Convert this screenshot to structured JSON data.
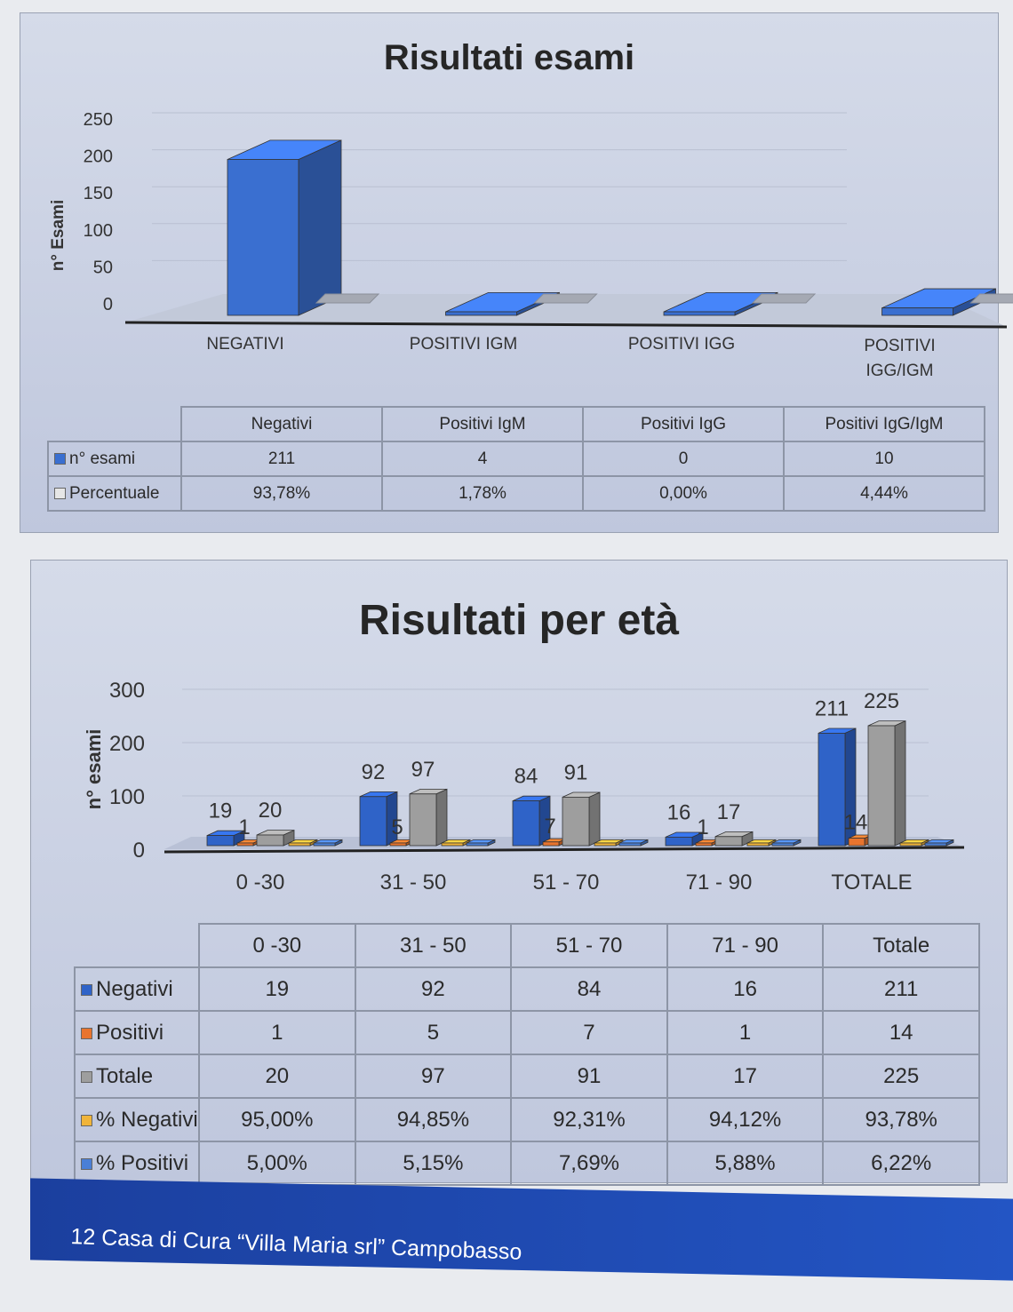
{
  "chart_data": [
    {
      "type": "bar",
      "title": "Risultati esami",
      "ylabel": "n° Esami",
      "xlabel": "",
      "ylim": [
        0,
        250
      ],
      "yticks": [
        0,
        50,
        100,
        150,
        200,
        250
      ],
      "categories": [
        "NEGATIVI",
        "POSITIVI IGM",
        "POSITIVI IGG",
        "POSITIVI IGG/IGM"
      ],
      "series": [
        {
          "name": "n° esami",
          "color": "#3a6fd0",
          "values": [
            211,
            4,
            0,
            10
          ]
        },
        {
          "name": "Percentuale",
          "color": "#d9d9d9",
          "values": [
            0.9378,
            0.0178,
            0.0,
            0.0444
          ]
        }
      ],
      "table": {
        "headers": [
          "Negativi",
          "Positivi IgM",
          "Positivi IgG",
          "Positivi IgG/IgM"
        ],
        "rows": [
          {
            "label": "n° esami",
            "color": "#3a6fd0",
            "cells": [
              "211",
              "4",
              "0",
              "10"
            ]
          },
          {
            "label": "Percentuale",
            "color": "#e6e6e6",
            "cells": [
              "93,78%",
              "1,78%",
              "0,00%",
              "4,44%"
            ]
          }
        ]
      },
      "grid": true
    },
    {
      "type": "bar",
      "title": "Risultati per età",
      "ylabel": "n° esami",
      "xlabel": "",
      "ylim": [
        0,
        300
      ],
      "yticks": [
        0,
        100,
        200,
        300
      ],
      "categories": [
        "0 -30",
        "31 - 50",
        "51 - 70",
        "71 - 90",
        "TOTALE"
      ],
      "series": [
        {
          "name": "Negativi",
          "color": "#2f63c8",
          "values": [
            19,
            92,
            84,
            16,
            211
          ]
        },
        {
          "name": "Positivi",
          "color": "#e8742e",
          "values": [
            1,
            5,
            7,
            1,
            14
          ]
        },
        {
          "name": "Totale",
          "color": "#9e9e9e",
          "values": [
            20,
            97,
            91,
            17,
            225
          ]
        },
        {
          "name": "% Negativi",
          "color": "#f0b43a",
          "values": [
            0.95,
            0.9485,
            0.9231,
            0.9412,
            0.9378
          ]
        },
        {
          "name": "% Positivi",
          "color": "#4a7fd6",
          "values": [
            0.05,
            0.0515,
            0.0769,
            0.0588,
            0.0622
          ]
        }
      ],
      "data_labels": [
        [
          "19",
          "1",
          "20"
        ],
        [
          "92",
          "5",
          "97"
        ],
        [
          "84",
          "7",
          "91"
        ],
        [
          "16",
          "1",
          "17"
        ],
        [
          "211",
          "14",
          "225"
        ]
      ],
      "table": {
        "headers": [
          "0 -30",
          "31 - 50",
          "51 - 70",
          "71 - 90",
          "Totale"
        ],
        "rows": [
          {
            "label": "Negativi",
            "color": "#2f63c8",
            "cells": [
              "19",
              "92",
              "84",
              "16",
              "211"
            ]
          },
          {
            "label": "Positivi",
            "color": "#e8742e",
            "cells": [
              "1",
              "5",
              "7",
              "1",
              "14"
            ]
          },
          {
            "label": "Totale",
            "color": "#9e9e9e",
            "cells": [
              "20",
              "97",
              "91",
              "17",
              "225"
            ]
          },
          {
            "label": "% Negativi",
            "color": "#f0b43a",
            "cells": [
              "95,00%",
              "94,85%",
              "92,31%",
              "94,12%",
              "93,78%"
            ]
          },
          {
            "label": "% Positivi",
            "color": "#4a7fd6",
            "cells": [
              "5,00%",
              "5,15%",
              "7,69%",
              "5,88%",
              "6,22%"
            ]
          }
        ]
      },
      "grid": true
    }
  ],
  "footer": {
    "text": "12 Casa di Cura “Villa Maria srl” Campobasso",
    "color": "#1b3f9e"
  }
}
